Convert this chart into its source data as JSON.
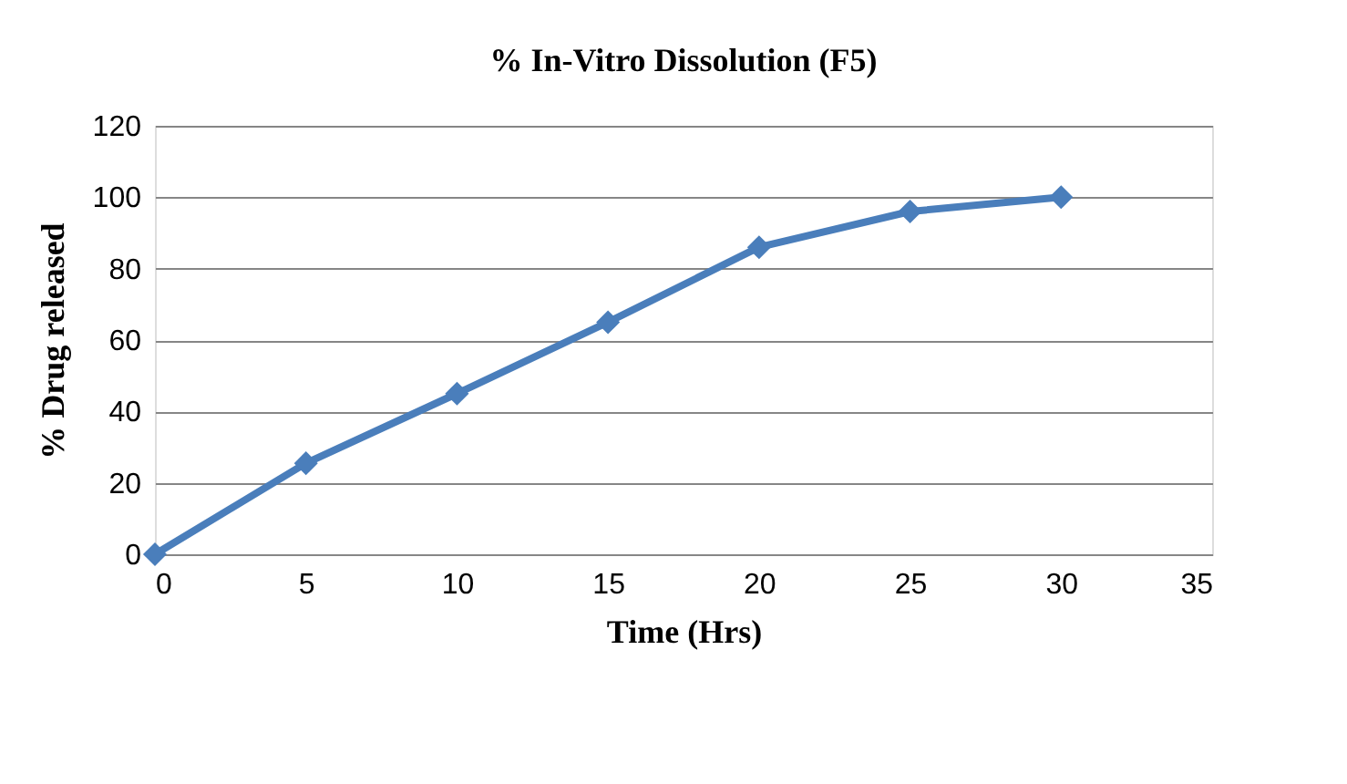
{
  "chart_data": {
    "type": "line",
    "title": "% In-Vitro Dissolution (F5)",
    "xlabel": "Time (Hrs)",
    "ylabel": "% Drug released",
    "x": [
      0,
      5,
      10,
      15,
      20,
      25,
      30
    ],
    "series": [
      {
        "color": "#4a7ebb",
        "values": [
          0,
          25.5,
          45,
          65,
          86,
          96,
          100
        ]
      }
    ],
    "xlim": [
      0,
      35
    ],
    "xticks": [
      0,
      5,
      10,
      15,
      20,
      25,
      30,
      35
    ],
    "ylim": [
      0,
      120
    ],
    "yticks": [
      0,
      20,
      40,
      60,
      80,
      100,
      120
    ],
    "grid": "y",
    "marker": "diamond",
    "line_style": "solid",
    "legend": false
  }
}
